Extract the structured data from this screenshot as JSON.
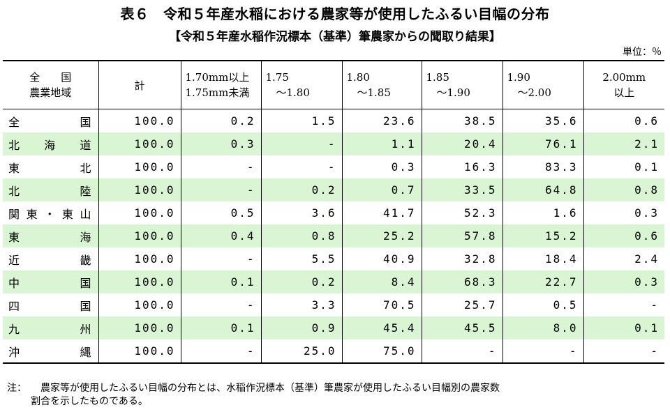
{
  "title": "表６　令和５年産水稲における農家等が使用したふるい目幅の分布",
  "subtitle": "【令和５年産水稲作況標本（基準）筆農家からの聞取り結果】",
  "unit": "単位：％",
  "header": {
    "region_line1": "全　　国",
    "region_line2": "農業地域",
    "total": "計",
    "ranges": [
      {
        "line1": "1.70mm以上",
        "line2": "1.75mm未満"
      },
      {
        "line1": "1.75",
        "line2": "　～1.80"
      },
      {
        "line1": "1.80",
        "line2": "　～1.85"
      },
      {
        "line1": "1.85",
        "line2": "　～1.90"
      },
      {
        "line1": "1.90",
        "line2": "　～2.00"
      },
      {
        "line1": "2.00mm",
        "line2": "以上"
      }
    ]
  },
  "rows": [
    {
      "region": "全国",
      "total": "100.0",
      "v1": "0.2",
      "v2": "1.5",
      "v3": "23.6",
      "v4": "38.5",
      "v5": "35.6",
      "v6": "0.6"
    },
    {
      "region": "北海道",
      "total": "100.0",
      "v1": "0.3",
      "v2": "-",
      "v3": "1.1",
      "v4": "20.4",
      "v5": "76.1",
      "v6": "2.1"
    },
    {
      "region": "東北",
      "total": "100.0",
      "v1": "-",
      "v2": "-",
      "v3": "0.3",
      "v4": "16.3",
      "v5": "83.3",
      "v6": "0.1"
    },
    {
      "region": "北陸",
      "total": "100.0",
      "v1": "-",
      "v2": "0.2",
      "v3": "0.7",
      "v4": "33.5",
      "v5": "64.8",
      "v6": "0.8"
    },
    {
      "region": "関東・東山",
      "total": "100.0",
      "v1": "0.5",
      "v2": "3.6",
      "v3": "41.7",
      "v4": "52.3",
      "v5": "1.6",
      "v6": "0.3"
    },
    {
      "region": "東海",
      "total": "100.0",
      "v1": "0.4",
      "v2": "0.8",
      "v3": "25.2",
      "v4": "57.8",
      "v5": "15.2",
      "v6": "0.6"
    },
    {
      "region": "近畿",
      "total": "100.0",
      "v1": "-",
      "v2": "5.5",
      "v3": "40.9",
      "v4": "32.8",
      "v5": "18.4",
      "v6": "2.4"
    },
    {
      "region": "中国",
      "total": "100.0",
      "v1": "0.1",
      "v2": "0.2",
      "v3": "8.4",
      "v4": "68.3",
      "v5": "22.7",
      "v6": "0.3"
    },
    {
      "region": "四国",
      "total": "100.0",
      "v1": "-",
      "v2": "3.3",
      "v3": "70.5",
      "v4": "25.7",
      "v5": "0.5",
      "v6": "-"
    },
    {
      "region": "九州",
      "total": "100.0",
      "v1": "0.1",
      "v2": "0.9",
      "v3": "45.4",
      "v4": "45.5",
      "v5": "8.0",
      "v6": "0.1"
    },
    {
      "region": "沖縄",
      "total": "100.0",
      "v1": "-",
      "v2": "25.0",
      "v3": "75.0",
      "v4": "-",
      "v5": "-",
      "v6": "-"
    }
  ],
  "note": {
    "label": "注：",
    "line1": "農家等が使用したふるい目幅の分布とは、水稲作況標本（基準）筆農家が使用したふるい目幅別の農家数",
    "line2": "割合を示したものである。"
  }
}
